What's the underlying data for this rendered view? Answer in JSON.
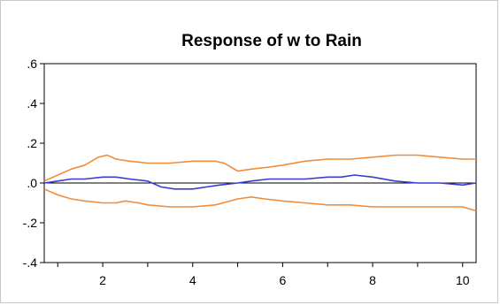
{
  "chart_data": {
    "type": "line",
    "title": "Response of w to Rain",
    "xlabel": "",
    "ylabel": "",
    "xlim": [
      0.7,
      10.3
    ],
    "ylim": [
      -0.4,
      0.6
    ],
    "x_ticks": [
      2,
      4,
      6,
      8,
      10
    ],
    "x_tick_labels": [
      "2",
      "4",
      "6",
      "8",
      "10"
    ],
    "y_ticks": [
      0.6,
      0.4,
      0.2,
      0.0,
      -0.2,
      -0.4
    ],
    "y_tick_labels": [
      ".6",
      ".4",
      ".2",
      ".0",
      "-.2",
      "-.4"
    ],
    "zero_line": true,
    "grid": false,
    "legend": "none",
    "series": [
      {
        "role": "upper-band",
        "color": "#f08c3a",
        "x": [
          0.7,
          1.0,
          1.3,
          1.6,
          1.9,
          2.1,
          2.3,
          2.6,
          3.0,
          3.5,
          4.0,
          4.5,
          4.7,
          5.0,
          5.3,
          5.7,
          6.0,
          6.5,
          7.0,
          7.5,
          8.0,
          8.5,
          9.0,
          9.5,
          10.0,
          10.3
        ],
        "y": [
          0.01,
          0.04,
          0.07,
          0.09,
          0.13,
          0.14,
          0.12,
          0.11,
          0.1,
          0.1,
          0.11,
          0.11,
          0.1,
          0.06,
          0.07,
          0.08,
          0.09,
          0.11,
          0.12,
          0.12,
          0.13,
          0.14,
          0.14,
          0.13,
          0.12,
          0.12
        ]
      },
      {
        "role": "response",
        "color": "#3a3ad4",
        "x": [
          0.7,
          1.0,
          1.3,
          1.6,
          2.0,
          2.3,
          2.6,
          3.0,
          3.3,
          3.6,
          4.0,
          4.3,
          4.6,
          5.0,
          5.3,
          5.7,
          6.0,
          6.5,
          7.0,
          7.3,
          7.6,
          8.0,
          8.5,
          9.0,
          9.5,
          10.0,
          10.3
        ],
        "y": [
          0.0,
          0.01,
          0.02,
          0.02,
          0.03,
          0.03,
          0.02,
          0.01,
          -0.02,
          -0.03,
          -0.03,
          -0.02,
          -0.01,
          0.0,
          0.01,
          0.02,
          0.02,
          0.02,
          0.03,
          0.03,
          0.04,
          0.03,
          0.01,
          0.0,
          0.0,
          -0.01,
          0.0
        ]
      },
      {
        "role": "lower-band",
        "color": "#f08c3a",
        "x": [
          0.7,
          1.0,
          1.3,
          1.6,
          2.0,
          2.3,
          2.5,
          2.8,
          3.0,
          3.5,
          4.0,
          4.5,
          5.0,
          5.3,
          5.6,
          6.0,
          6.5,
          7.0,
          7.5,
          8.0,
          8.5,
          9.0,
          9.5,
          10.0,
          10.3
        ],
        "y": [
          -0.03,
          -0.06,
          -0.08,
          -0.09,
          -0.1,
          -0.1,
          -0.09,
          -0.1,
          -0.11,
          -0.12,
          -0.12,
          -0.11,
          -0.08,
          -0.07,
          -0.08,
          -0.09,
          -0.1,
          -0.11,
          -0.11,
          -0.12,
          -0.12,
          -0.12,
          -0.12,
          -0.12,
          -0.14
        ]
      }
    ]
  }
}
